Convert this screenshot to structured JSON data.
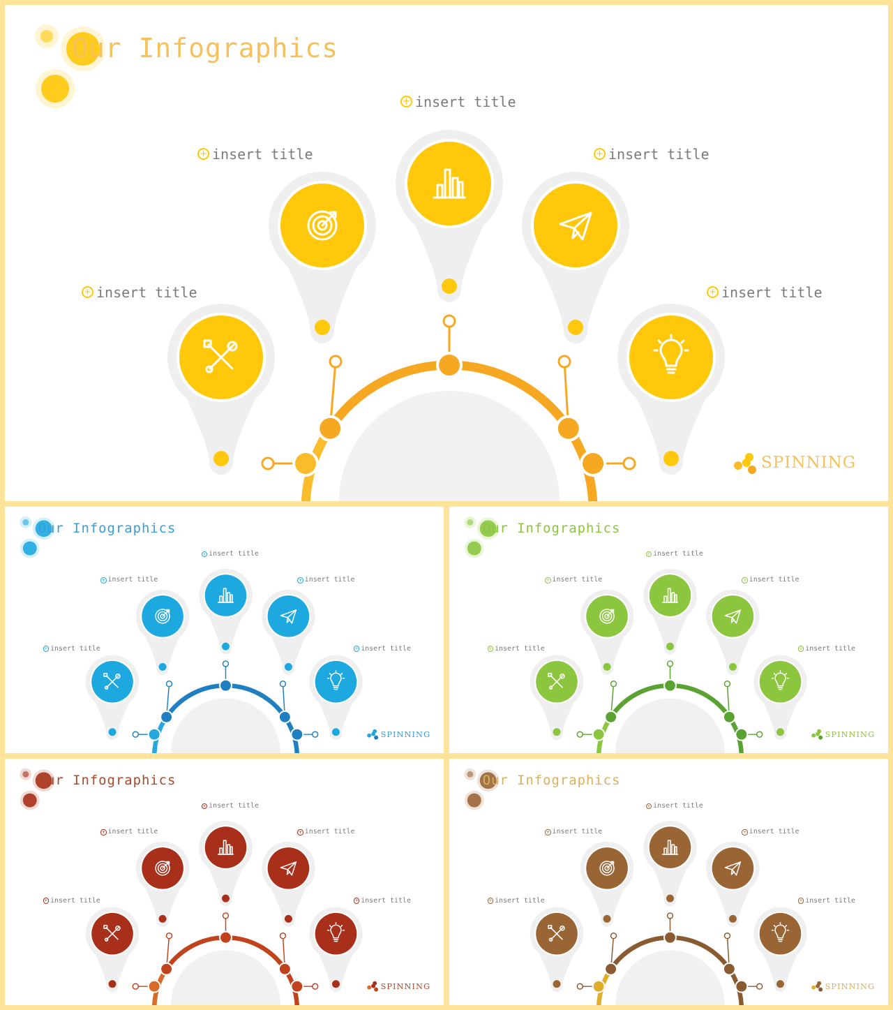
{
  "slide": {
    "title": "Our Infographics",
    "brand": "SPINNING",
    "items": [
      {
        "title": "insert title",
        "icon": "tools-icon"
      },
      {
        "title": "insert title",
        "icon": "target-icon"
      },
      {
        "title": "insert title",
        "icon": "bar-chart-icon"
      },
      {
        "title": "insert title",
        "icon": "paper-plane-icon"
      },
      {
        "title": "insert title",
        "icon": "lightbulb-icon"
      }
    ]
  },
  "themes": [
    {
      "name": "yellow",
      "accent": "#ffc80a",
      "arc": "#f7a823",
      "arc_light": "#f9bd2c",
      "title_color": "#f4c15b"
    },
    {
      "name": "blue",
      "accent": "#1ea8e0",
      "arc": "#1f7fc0",
      "arc_light": "#26a7e0",
      "title_color": "#3a9ed6"
    },
    {
      "name": "green",
      "accent": "#8cc63e",
      "arc": "#5aa232",
      "arc_light": "#8cc63e",
      "title_color": "#8cc63e"
    },
    {
      "name": "red",
      "accent": "#a8301a",
      "arc": "#c1431d",
      "arc_light": "#d86a2a",
      "title_color": "#a94a2a"
    },
    {
      "name": "brown",
      "accent": "#9a6535",
      "arc": "#8a5a30",
      "arc_light": "#e0ae2c",
      "title_color": "#d8b060"
    }
  ]
}
